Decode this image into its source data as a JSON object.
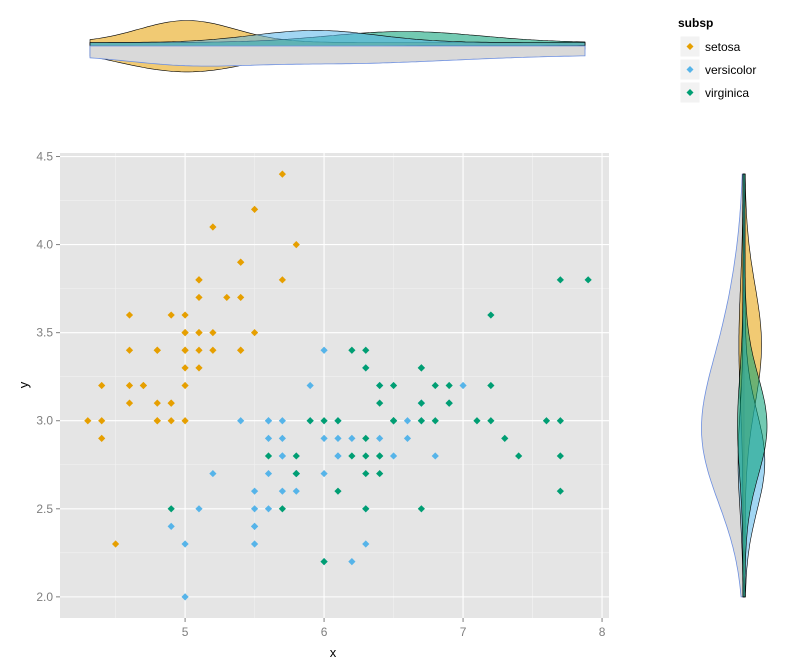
{
  "chart_data": [
    {
      "type": "scatter",
      "title": "",
      "xlabel": "x",
      "ylabel": "y",
      "xlim": [
        4.1,
        8.05
      ],
      "ylim": [
        1.88,
        4.52
      ],
      "xticks": [
        5,
        6,
        7,
        8
      ],
      "xtick_labels": [
        "5",
        "6",
        "7",
        "8"
      ],
      "yticks": [
        2.0,
        2.5,
        3.0,
        3.5,
        4.0,
        4.5
      ],
      "ytick_labels": [
        "2.0",
        "2.5",
        "3.0",
        "3.5",
        "4.0",
        "4.5"
      ],
      "grid": true,
      "legend": {
        "title": "subsp",
        "position": "top-right",
        "entries": [
          "setosa",
          "versicolor",
          "virginica"
        ]
      },
      "colors": {
        "setosa": "#e69f00",
        "versicolor": "#56b4e9",
        "virginica": "#009e73",
        "panel_bg": "#e5e5e5",
        "grid": "#ffffff"
      },
      "series": [
        {
          "name": "setosa",
          "x": [
            5.1,
            4.9,
            4.7,
            4.6,
            5.0,
            5.4,
            4.6,
            5.0,
            4.4,
            4.9,
            5.4,
            4.8,
            4.8,
            4.3,
            5.8,
            5.7,
            5.4,
            5.1,
            5.7,
            5.1,
            5.4,
            5.1,
            4.6,
            5.1,
            4.8,
            5.0,
            5.0,
            5.2,
            5.2,
            4.7,
            4.8,
            5.4,
            5.2,
            5.5,
            4.9,
            5.0,
            5.5,
            4.9,
            4.4,
            5.1,
            5.0,
            4.5,
            4.4,
            5.0,
            5.1,
            4.8,
            5.1,
            4.6,
            5.3,
            5.0
          ],
          "y": [
            3.5,
            3.0,
            3.2,
            3.1,
            3.6,
            3.9,
            3.4,
            3.4,
            2.9,
            3.1,
            3.7,
            3.4,
            3.0,
            3.0,
            4.0,
            4.4,
            3.9,
            3.5,
            3.8,
            3.8,
            3.4,
            3.7,
            3.6,
            3.3,
            3.4,
            3.0,
            3.4,
            3.5,
            3.4,
            3.2,
            3.1,
            3.4,
            4.1,
            4.2,
            3.1,
            3.2,
            3.5,
            3.6,
            3.0,
            3.4,
            3.5,
            2.3,
            3.2,
            3.5,
            3.8,
            3.0,
            3.8,
            3.2,
            3.7,
            3.3
          ]
        },
        {
          "name": "versicolor",
          "x": [
            7.0,
            6.4,
            6.9,
            5.5,
            6.5,
            5.7,
            6.3,
            4.9,
            6.6,
            5.2,
            5.0,
            5.9,
            6.0,
            6.1,
            5.6,
            6.7,
            5.6,
            5.8,
            6.2,
            5.6,
            5.9,
            6.1,
            6.3,
            6.1,
            6.4,
            6.6,
            6.8,
            6.7,
            6.0,
            5.7,
            5.5,
            5.5,
            5.8,
            6.0,
            5.4,
            6.0,
            6.7,
            6.3,
            5.6,
            5.5,
            5.5,
            6.1,
            5.8,
            5.0,
            5.6,
            5.7,
            5.7,
            6.2,
            5.1,
            5.7
          ],
          "y": [
            3.2,
            3.2,
            3.1,
            2.3,
            2.8,
            2.8,
            3.3,
            2.4,
            2.9,
            2.7,
            2.0,
            3.0,
            2.2,
            2.9,
            2.9,
            3.1,
            3.0,
            2.7,
            2.2,
            2.5,
            3.2,
            2.8,
            2.5,
            2.8,
            2.9,
            3.0,
            2.8,
            3.0,
            2.9,
            2.6,
            2.4,
            2.4,
            2.7,
            2.7,
            3.0,
            3.4,
            3.1,
            2.3,
            3.0,
            2.5,
            2.6,
            3.0,
            2.6,
            2.3,
            2.7,
            3.0,
            2.9,
            2.9,
            2.5,
            2.8
          ]
        },
        {
          "name": "virginica",
          "x": [
            6.3,
            5.8,
            7.1,
            6.3,
            6.5,
            7.6,
            4.9,
            7.3,
            6.7,
            7.2,
            6.5,
            6.4,
            6.8,
            5.7,
            5.8,
            6.4,
            6.5,
            7.7,
            7.7,
            6.0,
            6.9,
            5.6,
            7.7,
            6.3,
            6.7,
            7.2,
            6.2,
            6.1,
            6.4,
            7.2,
            7.4,
            7.9,
            6.4,
            6.3,
            6.1,
            7.7,
            6.3,
            6.4,
            6.0,
            6.9,
            6.7,
            6.9,
            5.8,
            6.8,
            6.7,
            6.7,
            6.3,
            6.5,
            6.2,
            5.9
          ],
          "y": [
            3.3,
            2.7,
            3.0,
            2.9,
            3.0,
            3.0,
            2.5,
            2.9,
            2.5,
            3.6,
            3.2,
            2.7,
            3.0,
            2.5,
            2.8,
            3.2,
            3.0,
            3.8,
            2.6,
            2.2,
            3.2,
            2.8,
            2.8,
            2.7,
            3.3,
            3.2,
            2.8,
            3.0,
            2.8,
            3.0,
            2.8,
            3.8,
            2.8,
            2.8,
            2.6,
            3.0,
            3.4,
            3.1,
            3.0,
            3.1,
            3.1,
            3.1,
            2.7,
            3.2,
            3.3,
            3.0,
            2.5,
            3.0,
            3.4,
            3.0
          ]
        }
      ]
    },
    {
      "type": "area",
      "title": "",
      "xlabel": "",
      "ylabel": "",
      "description_axis": "x",
      "xlim": [
        4.1,
        8.05
      ],
      "series": [
        {
          "name": "setosa",
          "mean": 5.006,
          "sd": 0.35,
          "peak": 1.0
        },
        {
          "name": "versicolor",
          "mean": 5.94,
          "sd": 0.45,
          "peak": 0.55
        },
        {
          "name": "virginica",
          "mean": 6.59,
          "sd": 0.55,
          "peak": 0.5
        }
      ]
    },
    {
      "type": "area",
      "title": "",
      "xlabel": "",
      "ylabel": "",
      "description_axis": "y",
      "ylim": [
        1.88,
        4.52
      ],
      "series": [
        {
          "name": "setosa",
          "mean": 3.43,
          "sd": 0.34,
          "peak": 0.75
        },
        {
          "name": "versicolor",
          "mean": 2.77,
          "sd": 0.28,
          "peak": 0.9
        },
        {
          "name": "virginica",
          "mean": 2.97,
          "sd": 0.28,
          "peak": 1.0
        }
      ]
    }
  ]
}
